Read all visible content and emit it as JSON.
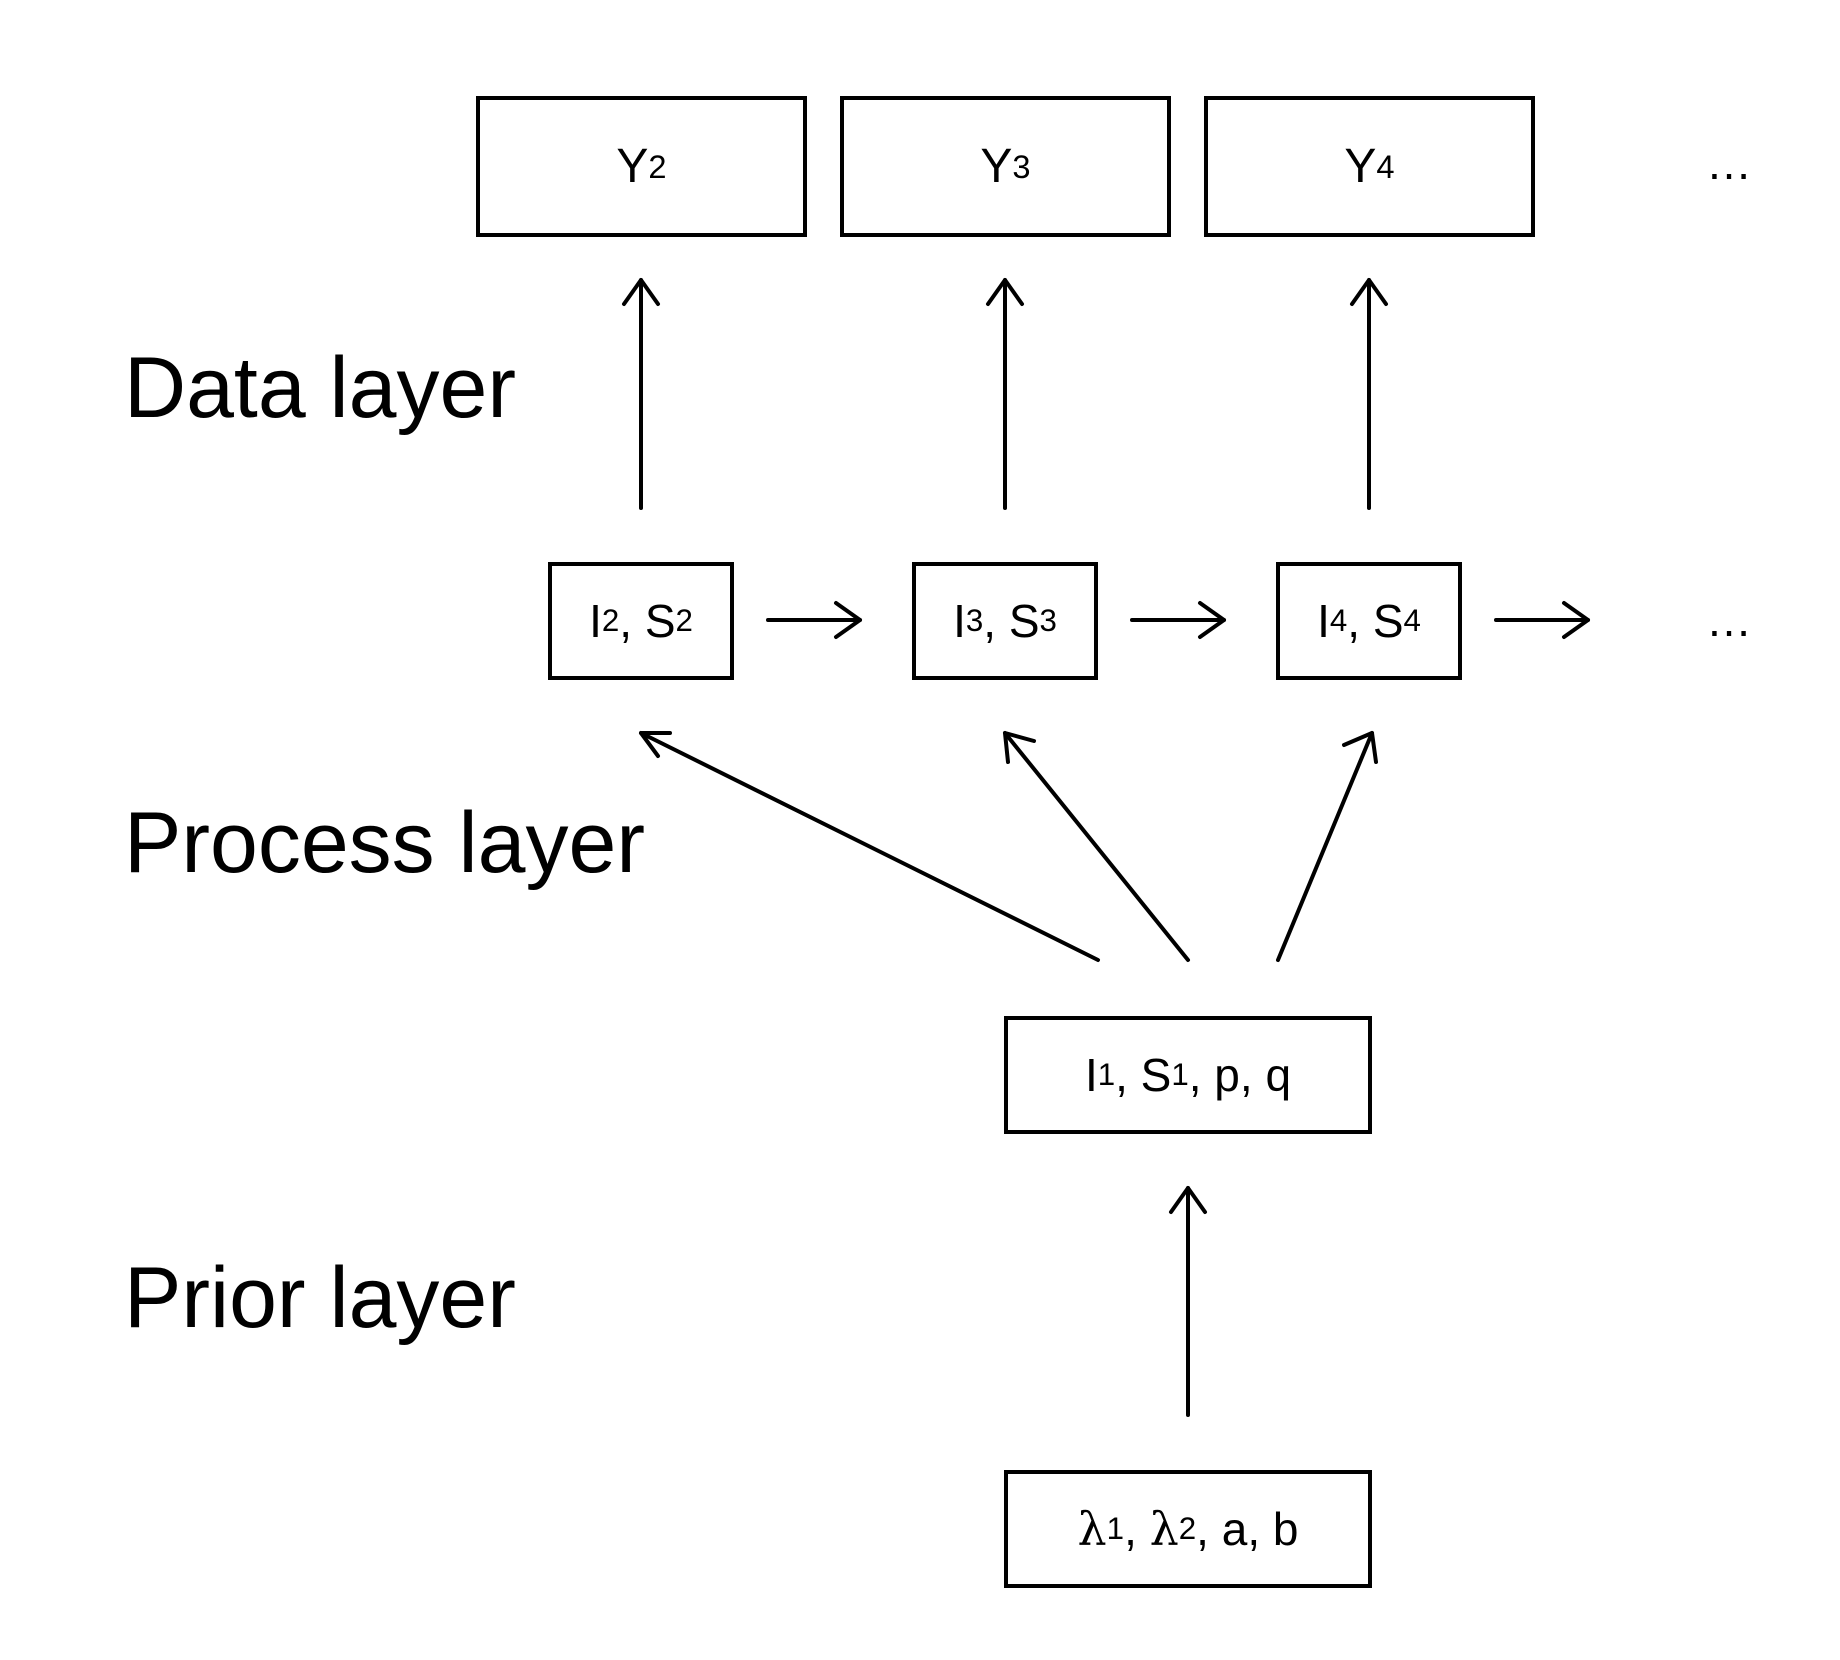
{
  "layers": {
    "data": "Data layer",
    "process": "Process layer",
    "prior": "Prior layer"
  },
  "data_nodes": [
    {
      "base": "Y",
      "sub": "2"
    },
    {
      "base": "Y",
      "sub": "3"
    },
    {
      "base": "Y",
      "sub": "4"
    }
  ],
  "data_ellipsis": "…",
  "process_nodes": [
    {
      "a": "I",
      "a_sub": "2",
      "sep": ", ",
      "b": "S",
      "b_sub": "2"
    },
    {
      "a": "I",
      "a_sub": "3",
      "sep": ", ",
      "b": "S",
      "b_sub": "3"
    },
    {
      "a": "I",
      "a_sub": "4",
      "sep": ", ",
      "b": "S",
      "b_sub": "4"
    }
  ],
  "process_ellipsis": "…",
  "init_node": {
    "a": "I",
    "a_sub": "1",
    "sep1": ", ",
    "b": "S",
    "b_sub": "1",
    "rest": ", p, q"
  },
  "prior_node": {
    "a": "λ",
    "a_sub": "1",
    "sep1": ", ",
    "b": "λ",
    "b_sub": "2",
    "rest": ", a, b"
  }
}
